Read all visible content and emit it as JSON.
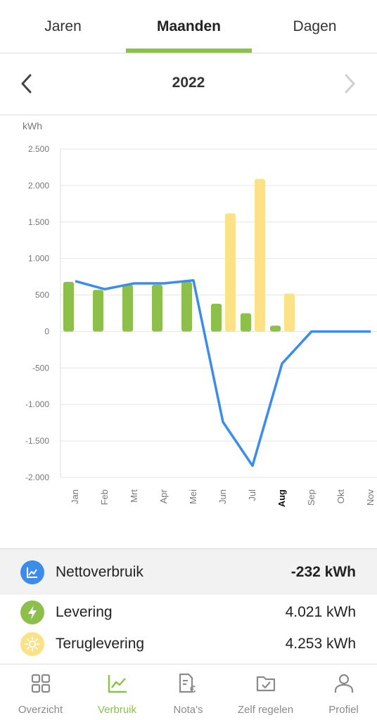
{
  "tabs": [
    {
      "label": "Jaren",
      "active": false
    },
    {
      "label": "Maanden",
      "active": true
    },
    {
      "label": "Dagen",
      "active": false
    }
  ],
  "period": {
    "label": "2022",
    "prev_icon": "chevron-left-icon",
    "next_icon": "chevron-right-icon"
  },
  "colors": {
    "accent": "#8cc04b",
    "levering": "#8cc04b",
    "teruglevering": "#fbe286",
    "netto_line": "#3b8ceb",
    "grid": "#e6e6e6"
  },
  "chart_data": {
    "type": "bar",
    "ylabel": "kWh",
    "ylim": [
      -2000,
      2500
    ],
    "yticks": [
      2500,
      2000,
      1500,
      1000,
      500,
      0,
      -500,
      -1000,
      -1500,
      -2000
    ],
    "ytick_labels": [
      "2.500",
      "2.000",
      "1.500",
      "1.000",
      "500",
      "0",
      "-500",
      "-1.000",
      "-1.500",
      "-2.000"
    ],
    "categories": [
      "Jan",
      "Feb",
      "Mrt",
      "Apr",
      "Mei",
      "Jun",
      "Jul",
      "Aug",
      "Sep",
      "Okt",
      "Nov"
    ],
    "selected_category": "Aug",
    "series": [
      {
        "key": "levering",
        "type": "bar",
        "values": [
          680,
          570,
          640,
          640,
          680,
          380,
          250,
          80,
          0,
          0,
          0
        ]
      },
      {
        "key": "teruglevering",
        "type": "bar",
        "values": [
          0,
          0,
          0,
          0,
          0,
          1620,
          2090,
          520,
          0,
          0,
          0
        ]
      },
      {
        "key": "nettoverbruik",
        "type": "line",
        "values": [
          690,
          580,
          660,
          660,
          700,
          -1240,
          -1840,
          -440,
          0,
          0,
          0
        ]
      }
    ]
  },
  "summary": [
    {
      "key": "net",
      "label": "Nettoverbruik",
      "value": "-232 kWh",
      "icon": "line-chart-icon"
    },
    {
      "key": "levering",
      "label": "Levering",
      "value": "4.021 kWh",
      "icon": "lightning-icon"
    },
    {
      "key": "teruglevering",
      "label": "Teruglevering",
      "value": "4.253 kWh",
      "icon": "sun-icon"
    }
  ],
  "nav": [
    {
      "label": "Overzicht",
      "icon": "grid-icon",
      "active": false
    },
    {
      "label": "Verbruik",
      "icon": "chart-icon",
      "active": true
    },
    {
      "label": "Nota's",
      "icon": "invoice-icon",
      "active": false
    },
    {
      "label": "Zelf regelen",
      "icon": "folder-check-icon",
      "active": false
    },
    {
      "label": "Profiel",
      "icon": "user-icon",
      "active": false
    }
  ]
}
